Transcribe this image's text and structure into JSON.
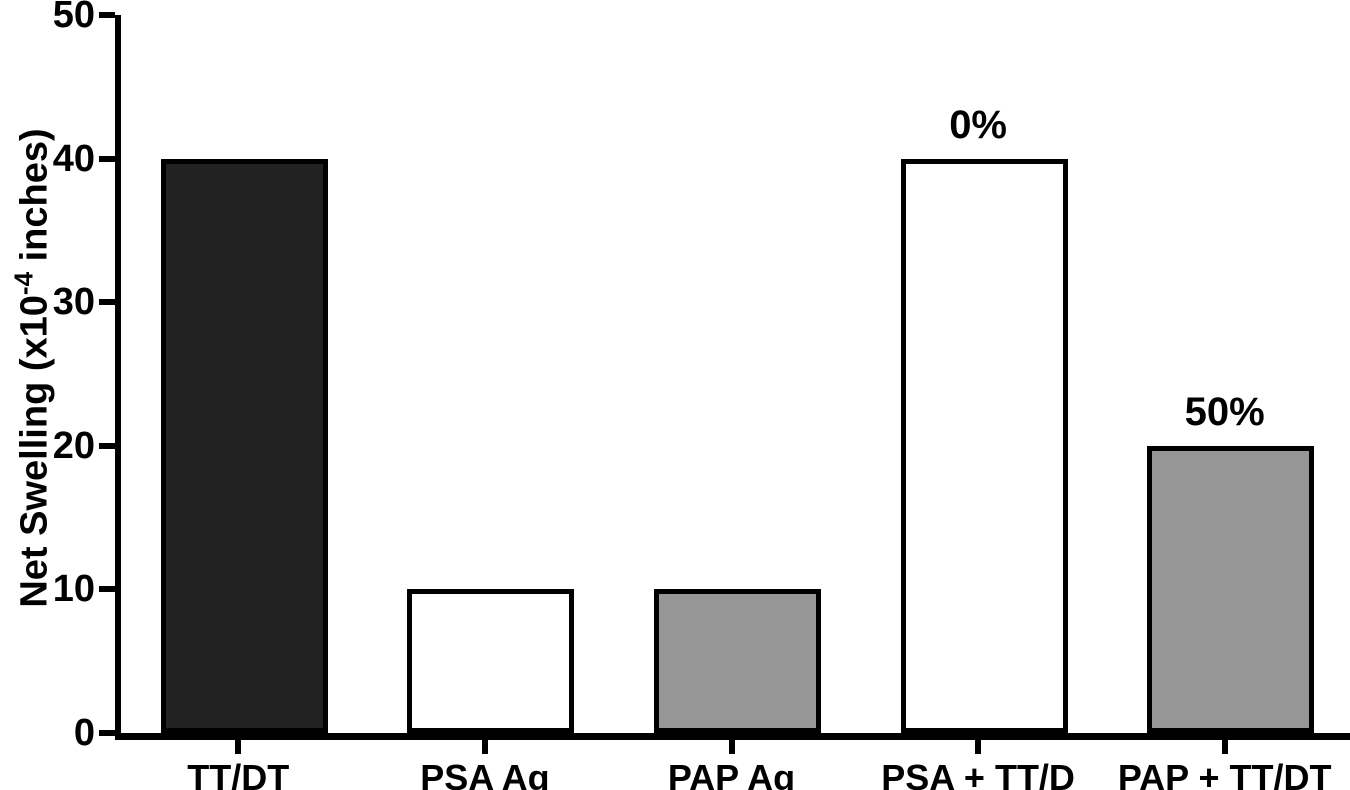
{
  "figure": {
    "background_color": "#ffffff",
    "axis_color": "#000000",
    "text_color": "#000000"
  },
  "chart_data": {
    "type": "bar",
    "title": "",
    "xlabel": "",
    "ylabel": "Net Swelling (x10^-4 inches)",
    "ylabel_parts": {
      "prefix": "Net Swelling (x10",
      "superscript": "-4",
      "suffix": " inches)"
    },
    "ylim": [
      0,
      50
    ],
    "yticks": [
      "0",
      "10",
      "20",
      "30",
      "40",
      "50"
    ],
    "ytick_values": [
      0,
      10,
      20,
      30,
      40,
      50
    ],
    "categories": [
      "TT/DT",
      "PSA Ag",
      "PAP Ag",
      "PSA + TT/D",
      "PAP + TT/DT"
    ],
    "values": [
      40,
      10,
      10,
      40,
      20
    ],
    "bar_labels": [
      "",
      "",
      "",
      "0%",
      "50%"
    ],
    "bar_fills": [
      "#222222",
      "#ffffff",
      "#969696",
      "#ffffff",
      "#969696"
    ],
    "bar_border_color": "#000000",
    "grid": false,
    "legend": false
  }
}
